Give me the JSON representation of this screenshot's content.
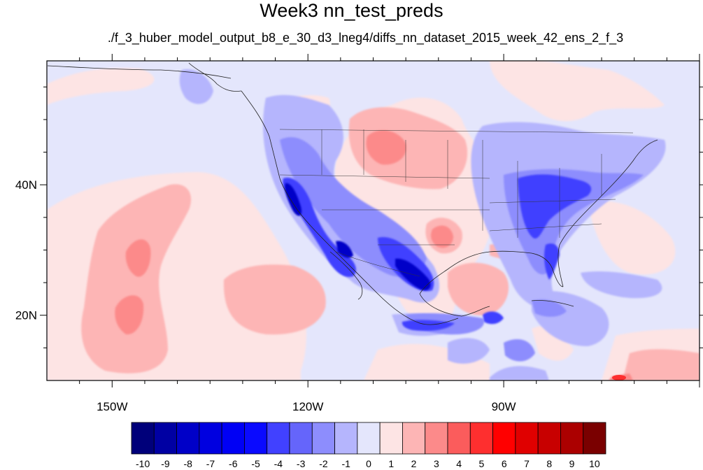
{
  "title": "Week3 nn_test_preds",
  "subtitle": "./f_3_huber_model_output_b8_e_30_d3_lneg4/diffs_nn_dataset_2015_week_42_ens_2_f_3",
  "map": {
    "lon_range": [
      -160,
      -60
    ],
    "lat_range": [
      10,
      59
    ],
    "lon_labels": [
      "150W",
      "120W",
      "90W"
    ],
    "lat_labels": [
      "40N",
      "20N"
    ]
  },
  "colorbar": {
    "labels": [
      "-10",
      "-9",
      "-8",
      "-7",
      "-6",
      "-5",
      "-4",
      "-3",
      "-2",
      "-1",
      "0",
      "1",
      "2",
      "3",
      "4",
      "5",
      "6",
      "7",
      "8",
      "9",
      "10"
    ],
    "colors": [
      "#00007a",
      "#0000a3",
      "#0000c8",
      "#0000e0",
      "#0000f5",
      "#0a0aff",
      "#4141ff",
      "#6565fb",
      "#8d8dfd",
      "#b5b5fd",
      "#e4e6fc",
      "#fde4e4",
      "#fdb5b5",
      "#fc8a8a",
      "#fb5c5c",
      "#fe2f2f",
      "#ff0000",
      "#e00000",
      "#c80000",
      "#ab0000",
      "#7a0000"
    ]
  }
}
